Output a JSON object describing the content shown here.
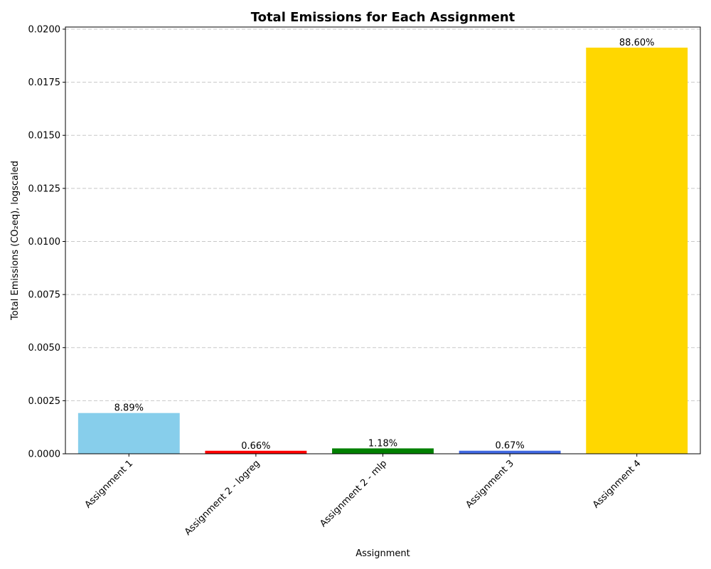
{
  "chart_data": {
    "type": "bar",
    "title": "Total Emissions for Each Assignment",
    "xlabel": "Assignment",
    "ylabel": "Total Emissions (CO₂eq), logscaled",
    "categories": [
      "Assignment 1",
      "Assignment 2 - logreg",
      "Assignment 2 - mlp",
      "Assignment 3",
      "Assignment 4"
    ],
    "values": [
      0.00192,
      0.000142,
      0.000254,
      0.000144,
      0.01913
    ],
    "data_labels": [
      "8.89%",
      "0.66%",
      "1.18%",
      "0.67%",
      "88.60%"
    ],
    "colors": [
      "#87ceeb",
      "#ff0000",
      "#008000",
      "#4169e1",
      "#ffd700"
    ],
    "ylim": [
      0,
      0.0201
    ],
    "yticks": [
      0.0,
      0.0025,
      0.005,
      0.0075,
      0.01,
      0.0125,
      0.015,
      0.0175,
      0.02
    ],
    "ytick_labels": [
      "0.0000",
      "0.0025",
      "0.0050",
      "0.0075",
      "0.0100",
      "0.0125",
      "0.0150",
      "0.0175",
      "0.0200"
    ],
    "grid": "horizontal dashed",
    "x_tick_rotation_deg": 45
  }
}
